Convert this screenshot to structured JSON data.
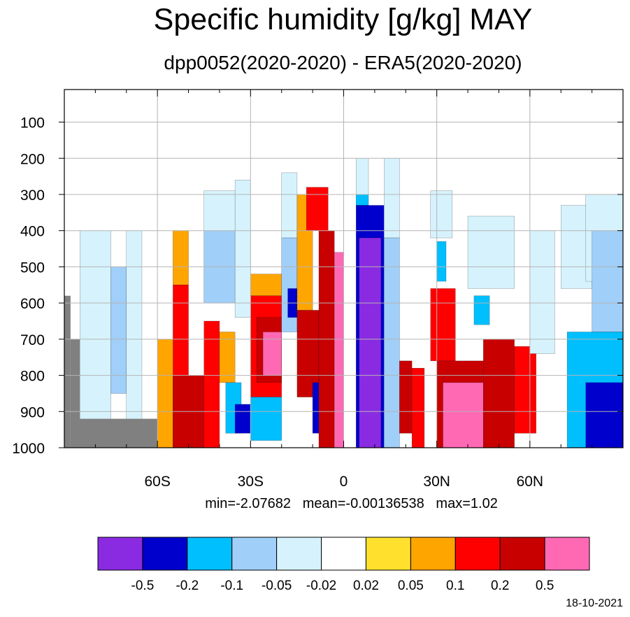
{
  "chart_data": {
    "type": "heatmap",
    "title": "Specific humidity [g/kg] MAY",
    "subtitle": "dpp0052(2020-2020) - ERA5(2020-2020)",
    "x_ticks": [
      "60S",
      "30S",
      "0",
      "30N",
      "60N"
    ],
    "x_tick_values": [
      -60,
      -30,
      0,
      30,
      60
    ],
    "xlim": [
      -90,
      90
    ],
    "y_ticks": [
      "100",
      "200",
      "300",
      "400",
      "500",
      "600",
      "700",
      "800",
      "900",
      "1000"
    ],
    "y_tick_values": [
      100,
      200,
      300,
      400,
      500,
      600,
      700,
      800,
      900,
      1000
    ],
    "ylim": [
      1000,
      10
    ],
    "grid": true,
    "stats": "min=-2.07682   mean=-0.00136538   max=1.02",
    "colorbar": {
      "levels": [
        "-0.5",
        "-0.2",
        "-0.1",
        "-0.05",
        "-0.02",
        "0.02",
        "0.05",
        "0.1",
        "0.2",
        "0.5"
      ],
      "colors": [
        "#8a2be2",
        "#0000cd",
        "#00bfff",
        "#a0cff9",
        "#d6f3fd",
        "#ffffff",
        "#ffe12d",
        "#ffa500",
        "#ff0000",
        "#c80000",
        "#ff69b4"
      ]
    },
    "missing_color": "#808080",
    "cells": [
      {
        "lat": [
          -85,
          -75
        ],
        "p": [
          400,
          1000
        ],
        "v": -0.03
      },
      {
        "lat": [
          -75,
          -70
        ],
        "p": [
          500,
          850
        ],
        "v": -0.07
      },
      {
        "lat": [
          -70,
          -65
        ],
        "p": [
          400,
          950
        ],
        "v": -0.03
      },
      {
        "lat": [
          -55,
          -50
        ],
        "p": [
          400,
          550
        ],
        "v": 0.06
      },
      {
        "lat": [
          -55,
          -50
        ],
        "p": [
          550,
          1000
        ],
        "v": 0.12
      },
      {
        "lat": [
          -60,
          -55
        ],
        "p": [
          700,
          1000
        ],
        "v": 0.08
      },
      {
        "lat": [
          -55,
          -45
        ],
        "p": [
          800,
          1000
        ],
        "v": 0.3
      },
      {
        "lat": [
          -45,
          -40
        ],
        "p": [
          650,
          1000
        ],
        "v": 0.15
      },
      {
        "lat": [
          -45,
          -35
        ],
        "p": [
          290,
          400
        ],
        "v": -0.03
      },
      {
        "lat": [
          -45,
          -35
        ],
        "p": [
          400,
          600
        ],
        "v": -0.07
      },
      {
        "lat": [
          -35,
          -30
        ],
        "p": [
          260,
          640
        ],
        "v": -0.03
      },
      {
        "lat": [
          -40,
          -35
        ],
        "p": [
          680,
          820
        ],
        "v": 0.08
      },
      {
        "lat": [
          -38,
          -33
        ],
        "p": [
          820,
          960
        ],
        "v": -0.12
      },
      {
        "lat": [
          -35,
          -30
        ],
        "p": [
          880,
          960
        ],
        "v": -0.3
      },
      {
        "lat": [
          -30,
          -20
        ],
        "p": [
          520,
          580
        ],
        "v": 0.06
      },
      {
        "lat": [
          -30,
          -20
        ],
        "p": [
          580,
          860
        ],
        "v": 0.15
      },
      {
        "lat": [
          -28,
          -20
        ],
        "p": [
          640,
          820
        ],
        "v": 0.3
      },
      {
        "lat": [
          -26,
          -20
        ],
        "p": [
          680,
          800
        ],
        "v": 0.7
      },
      {
        "lat": [
          -30,
          -20
        ],
        "p": [
          860,
          980
        ],
        "v": -0.12
      },
      {
        "lat": [
          -20,
          -15
        ],
        "p": [
          240,
          420
        ],
        "v": -0.03
      },
      {
        "lat": [
          -20,
          -15
        ],
        "p": [
          420,
          680
        ],
        "v": -0.07
      },
      {
        "lat": [
          -18,
          -15
        ],
        "p": [
          560,
          640
        ],
        "v": -0.3
      },
      {
        "lat": [
          -15,
          -10
        ],
        "p": [
          300,
          620
        ],
        "v": 0.08
      },
      {
        "lat": [
          -15,
          -8
        ],
        "p": [
          620,
          860
        ],
        "v": 0.25
      },
      {
        "lat": [
          -10,
          -5
        ],
        "p": [
          820,
          960
        ],
        "v": -0.3
      },
      {
        "lat": [
          -12,
          -5
        ],
        "p": [
          280,
          400
        ],
        "v": 0.15
      },
      {
        "lat": [
          -8,
          -3
        ],
        "p": [
          400,
          1000
        ],
        "v": 0.3
      },
      {
        "lat": [
          -3,
          0
        ],
        "p": [
          460,
          1000
        ],
        "v": 0.7
      },
      {
        "lat": [
          4,
          8
        ],
        "p": [
          200,
          300
        ],
        "v": -0.03
      },
      {
        "lat": [
          4,
          8
        ],
        "p": [
          300,
          330
        ],
        "v": -0.12
      },
      {
        "lat": [
          4,
          13
        ],
        "p": [
          330,
          1000
        ],
        "v": -0.3
      },
      {
        "lat": [
          5,
          12
        ],
        "p": [
          420,
          1000
        ],
        "v": -0.8
      },
      {
        "lat": [
          13,
          18
        ],
        "p": [
          200,
          420
        ],
        "v": -0.03
      },
      {
        "lat": [
          13,
          18
        ],
        "p": [
          420,
          1000
        ],
        "v": -0.07
      },
      {
        "lat": [
          18,
          22
        ],
        "p": [
          760,
          960
        ],
        "v": 0.3
      },
      {
        "lat": [
          22,
          26
        ],
        "p": [
          780,
          1000
        ],
        "v": 0.15
      },
      {
        "lat": [
          28,
          35
        ],
        "p": [
          290,
          420
        ],
        "v": -0.03
      },
      {
        "lat": [
          30,
          33
        ],
        "p": [
          430,
          540
        ],
        "v": -0.12
      },
      {
        "lat": [
          28,
          36
        ],
        "p": [
          560,
          760
        ],
        "v": 0.15
      },
      {
        "lat": [
          30,
          45
        ],
        "p": [
          760,
          1000
        ],
        "v": 0.3
      },
      {
        "lat": [
          32,
          45
        ],
        "p": [
          820,
          1000
        ],
        "v": 0.7
      },
      {
        "lat": [
          45,
          55
        ],
        "p": [
          700,
          1000
        ],
        "v": 0.3
      },
      {
        "lat": [
          55,
          62
        ],
        "p": [
          720,
          960
        ],
        "v": 0.15
      },
      {
        "lat": [
          40,
          55
        ],
        "p": [
          360,
          560
        ],
        "v": -0.03
      },
      {
        "lat": [
          42,
          47
        ],
        "p": [
          580,
          660
        ],
        "v": -0.12
      },
      {
        "lat": [
          60,
          68
        ],
        "p": [
          400,
          740
        ],
        "v": -0.03
      },
      {
        "lat": [
          70,
          80
        ],
        "p": [
          330,
          560
        ],
        "v": -0.03
      },
      {
        "lat": [
          78,
          90
        ],
        "p": [
          300,
          540
        ],
        "v": -0.03
      },
      {
        "lat": [
          80,
          90
        ],
        "p": [
          400,
          680
        ],
        "v": -0.07
      },
      {
        "lat": [
          72,
          90
        ],
        "p": [
          680,
          1000
        ],
        "v": -0.12
      },
      {
        "lat": [
          78,
          90
        ],
        "p": [
          820,
          1000
        ],
        "v": -0.3
      }
    ],
    "missing": [
      {
        "lat": [
          -90,
          -88
        ],
        "p": [
          580,
          1000
        ]
      },
      {
        "lat": [
          -88,
          -85
        ],
        "p": [
          700,
          1000
        ]
      },
      {
        "lat": [
          -85,
          -60
        ],
        "p": [
          920,
          1000
        ]
      }
    ]
  },
  "footer": {
    "date": "18-10-2021"
  }
}
